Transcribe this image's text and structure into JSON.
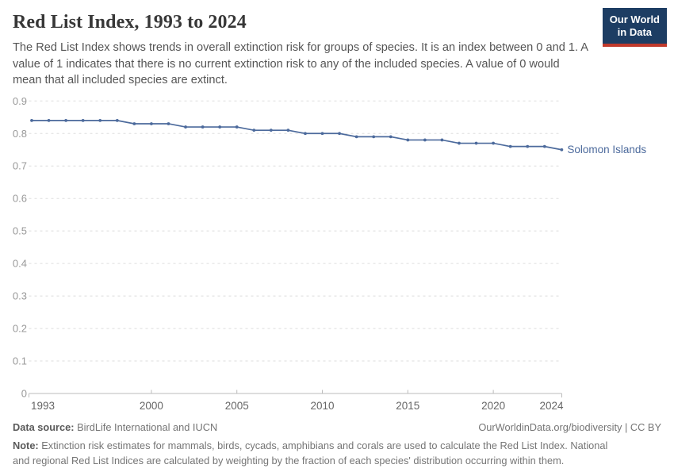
{
  "header": {
    "title": "Red List Index, 1993 to 2024",
    "subtitle": "The Red List Index shows trends in overall extinction risk for groups of species. It is an index between 0 and 1. A value of 1 indicates that there is no current extinction risk to any of the included species. A value of 0 would mean that all included species are extinct.",
    "logo": {
      "line1": "Our World",
      "line2": "in Data",
      "bg_color": "#1d3d63",
      "bar_color": "#c0392b"
    }
  },
  "chart_data": {
    "type": "line",
    "title": "Red List Index, 1993 to 2024",
    "xlabel": "",
    "ylabel": "",
    "xlim": [
      1993,
      2024
    ],
    "ylim": [
      0,
      0.9
    ],
    "x_ticks": [
      1993,
      2000,
      2005,
      2010,
      2015,
      2020,
      2024
    ],
    "y_ticks": [
      0,
      0.1,
      0.2,
      0.3,
      0.4,
      0.5,
      0.6,
      0.7,
      0.8,
      0.9
    ],
    "grid": "horizontal-dashed",
    "legend_position": "end-of-line",
    "x": [
      1993,
      1994,
      1995,
      1996,
      1997,
      1998,
      1999,
      2000,
      2001,
      2002,
      2003,
      2004,
      2005,
      2006,
      2007,
      2008,
      2009,
      2010,
      2011,
      2012,
      2013,
      2014,
      2015,
      2016,
      2017,
      2018,
      2019,
      2020,
      2021,
      2022,
      2023,
      2024
    ],
    "series": [
      {
        "name": "Solomon Islands",
        "color": "#4c6a9c",
        "values": [
          0.84,
          0.84,
          0.84,
          0.84,
          0.84,
          0.84,
          0.83,
          0.83,
          0.83,
          0.82,
          0.82,
          0.82,
          0.82,
          0.81,
          0.81,
          0.81,
          0.8,
          0.8,
          0.8,
          0.79,
          0.79,
          0.79,
          0.78,
          0.78,
          0.78,
          0.77,
          0.77,
          0.77,
          0.76,
          0.76,
          0.76,
          0.75
        ]
      }
    ]
  },
  "footer": {
    "source_label": "Data source:",
    "source_text": "BirdLife International and IUCN",
    "rights": "OurWorldinData.org/biodiversity | CC BY",
    "note_label": "Note:",
    "note_text": "Extinction risk estimates for mammals, birds, cycads, amphibians and corals are used to calculate the Red List Index. National and regional Red List Indices are calculated by weighting by the fraction of each species' distribution occurring within them."
  }
}
